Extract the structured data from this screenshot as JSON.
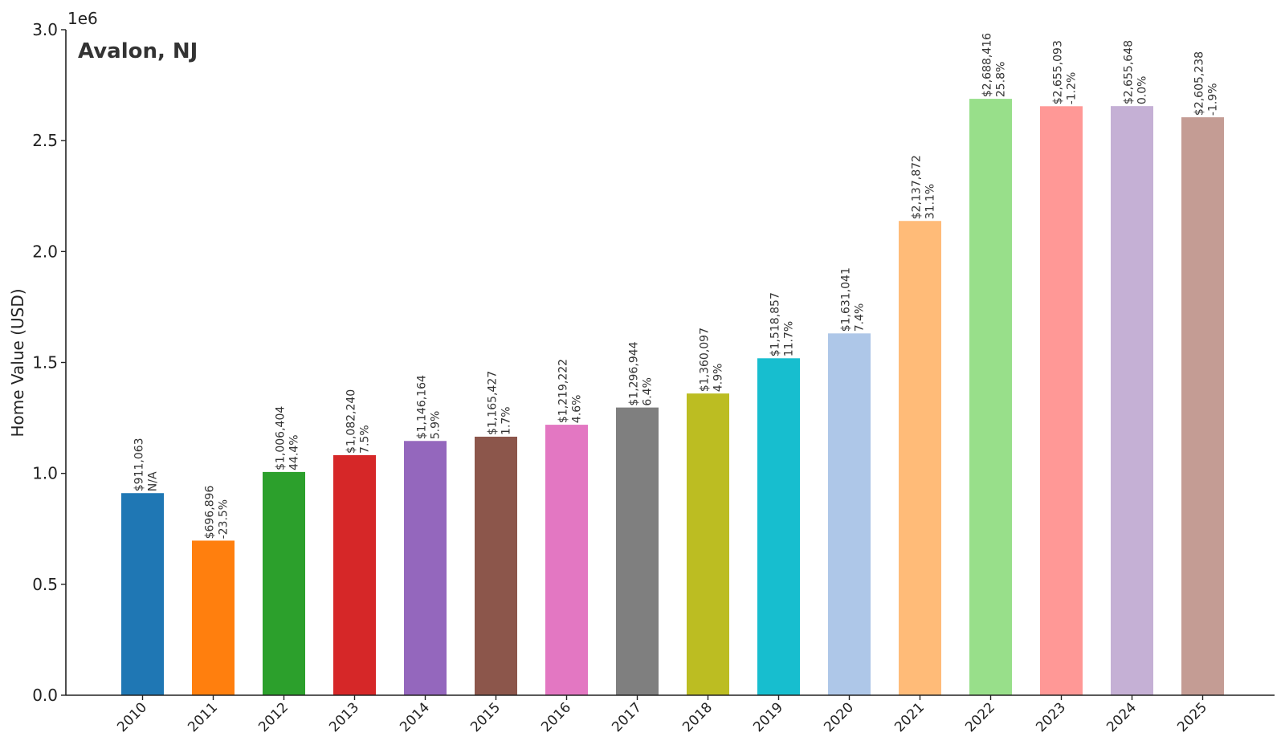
{
  "chart_data": {
    "type": "bar",
    "title": "Avalon, NJ",
    "xlabel": "",
    "ylabel": "Home Value (USD)",
    "y_offset_label": "1e6",
    "ylim": [
      0,
      3000000
    ],
    "y_ticks": [
      0,
      500000,
      1000000,
      1500000,
      2000000,
      2500000,
      3000000
    ],
    "y_tick_labels": [
      "0.0",
      "0.5",
      "1.0",
      "1.5",
      "2.0",
      "2.5",
      "3.0"
    ],
    "grid": false,
    "categories": [
      "2010",
      "2011",
      "2012",
      "2013",
      "2014",
      "2015",
      "2016",
      "2017",
      "2018",
      "2019",
      "2020",
      "2021",
      "2022",
      "2023",
      "2024",
      "2025"
    ],
    "values": [
      911063,
      696896,
      1006404,
      1082240,
      1146164,
      1165427,
      1219222,
      1296944,
      1360097,
      1518857,
      1631041,
      2137872,
      2688416,
      2655093,
      2655648,
      2605238
    ],
    "value_labels": [
      "$911,063",
      "$696,896",
      "$1,006,404",
      "$1,082,240",
      "$1,146,164",
      "$1,165,427",
      "$1,219,222",
      "$1,296,944",
      "$1,360,097",
      "$1,518,857",
      "$1,631,041",
      "$2,137,872",
      "$2,688,416",
      "$2,655,093",
      "$2,655,648",
      "$2,605,238"
    ],
    "change_labels": [
      "N/A",
      "-23.5%",
      "44.4%",
      "7.5%",
      "5.9%",
      "1.7%",
      "4.6%",
      "6.4%",
      "4.9%",
      "11.7%",
      "7.4%",
      "31.1%",
      "25.8%",
      "-1.2%",
      "0.0%",
      "-1.9%"
    ],
    "colors": [
      "#1f77b4",
      "#ff7f0e",
      "#2ca02c",
      "#d62728",
      "#9467bd",
      "#8c564b",
      "#e377c2",
      "#7f7f7f",
      "#bcbd22",
      "#17becf",
      "#aec7e8",
      "#ffbb78",
      "#98df8a",
      "#ff9896",
      "#c5b0d5",
      "#c49c94"
    ]
  }
}
